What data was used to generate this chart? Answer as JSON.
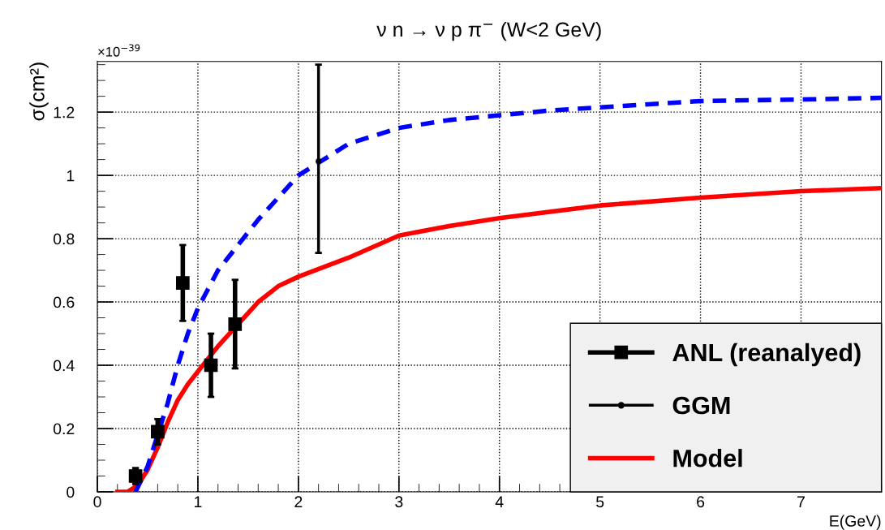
{
  "chart_data": {
    "type": "line",
    "title": "ν n → ν p π$^{−}$ (W<2 GeV)",
    "xlabel": "E(GeV)",
    "ylabel": "σ(cm²)",
    "annotations": [
      "×10$^{−39}$"
    ],
    "xlim": [
      0,
      7.8
    ],
    "xticks": [
      0,
      1,
      2,
      3,
      4,
      5,
      6,
      7
    ],
    "ylim": [
      0,
      1.36
    ],
    "yticks": [
      0,
      0.2,
      0.4,
      0.6,
      0.8,
      1,
      1.2
    ],
    "grid": true,
    "legend": "bottom right",
    "series": [
      {
        "name": "ANL (reanalyed)",
        "type": "scatter",
        "marker": "square",
        "color": "#000000",
        "x": [
          0.38,
          0.6,
          0.85,
          1.13,
          1.37
        ],
        "values": [
          0.05,
          0.19,
          0.66,
          0.4,
          0.53
        ],
        "errors": [
          0.025,
          0.04,
          0.12,
          0.1,
          0.14
        ]
      },
      {
        "name": "GGM",
        "type": "scatter",
        "marker": "circle",
        "color": "#000000",
        "x": [
          2.2
        ],
        "values": [
          1.045
        ],
        "errors": [
          [
            0.755,
            1.35
          ]
        ]
      },
      {
        "name": "Model",
        "line_style": "solid",
        "color": "#ff0000",
        "x": [
          0.2,
          0.3,
          0.4,
          0.5,
          0.6,
          0.7,
          0.8,
          0.9,
          1.0,
          1.1,
          1.2,
          1.4,
          1.6,
          1.8,
          2.0,
          2.5,
          3.0,
          3.5,
          4.0,
          5.0,
          6.0,
          7.0,
          7.8
        ],
        "values": [
          0,
          0,
          0.02,
          0.07,
          0.14,
          0.22,
          0.29,
          0.34,
          0.38,
          0.42,
          0.46,
          0.53,
          0.6,
          0.65,
          0.68,
          0.74,
          0.81,
          0.84,
          0.865,
          0.905,
          0.93,
          0.95,
          0.96
        ]
      },
      {
        "line_style": "dashed",
        "color": "#0000ff",
        "x": [
          0.38,
          0.5,
          0.6,
          0.7,
          0.8,
          0.9,
          1.0,
          1.1,
          1.2,
          1.3,
          1.4,
          1.6,
          1.8,
          2.0,
          2.2,
          2.5,
          3.0,
          3.5,
          4.0,
          4.5,
          5.0,
          6.0,
          7.0,
          7.8
        ],
        "values": [
          0.0,
          0.08,
          0.18,
          0.28,
          0.4,
          0.5,
          0.58,
          0.64,
          0.7,
          0.74,
          0.78,
          0.86,
          0.93,
          1.0,
          1.04,
          1.1,
          1.15,
          1.175,
          1.19,
          1.205,
          1.215,
          1.235,
          1.24,
          1.245
        ]
      }
    ]
  }
}
